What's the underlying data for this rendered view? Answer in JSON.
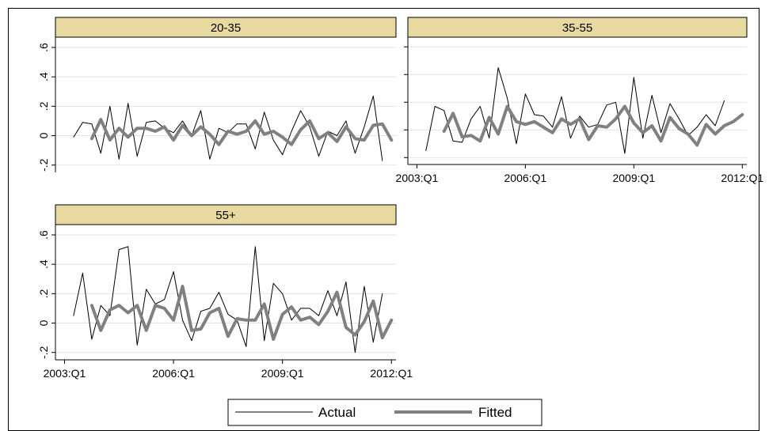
{
  "chart_data": {
    "type": "line",
    "layout": "small-multiples",
    "x_ticks": [
      "2003:Q1",
      "2006:Q1",
      "2009:Q1",
      "2012:Q1"
    ],
    "x_tick_values": [
      0,
      12,
      24,
      36
    ],
    "y_ticks": [
      "-.2",
      "0",
      ".2",
      ".4",
      ".6"
    ],
    "y_tick_values": [
      -0.2,
      0,
      0.2,
      0.4,
      0.6
    ],
    "ylim": [
      -0.25,
      0.67
    ],
    "grid": true,
    "legend": {
      "position": "bottom",
      "entries": [
        "Actual",
        "Fitted"
      ]
    },
    "colors": {
      "strip": "#e8d9a0",
      "actual": "#000000",
      "fitted": "#808080"
    },
    "panels": [
      {
        "title": "20-35",
        "x_start": 1,
        "series": [
          {
            "name": "Actual",
            "values": [
              -0.01,
              0.09,
              0.08,
              -0.12,
              0.2,
              -0.16,
              0.22,
              -0.14,
              0.09,
              0.1,
              0.05,
              0.02,
              0.1,
              0.0,
              0.17,
              -0.16,
              0.05,
              0.02,
              0.08,
              0.08,
              -0.09,
              0.16,
              -0.03,
              -0.13,
              0.03,
              0.17,
              0.06,
              -0.14,
              0.03,
              0.0,
              0.1,
              -0.12,
              0.06,
              0.27,
              -0.17
            ]
          },
          {
            "name": "Fitted",
            "values": [
              null,
              null,
              -0.02,
              0.11,
              -0.03,
              0.05,
              -0.01,
              0.05,
              0.05,
              0.03,
              0.06,
              -0.03,
              0.07,
              0.0,
              0.06,
              0.01,
              -0.06,
              0.03,
              0.01,
              0.03,
              0.1,
              0.01,
              0.03,
              -0.01,
              -0.06,
              0.04,
              0.1,
              -0.02,
              0.02,
              -0.04,
              0.06,
              -0.02,
              -0.03,
              0.07,
              0.08,
              -0.03
            ]
          }
        ]
      },
      {
        "title": "35-55",
        "x_start": 1,
        "series": [
          {
            "name": "Actual",
            "values": [
              -0.15,
              0.17,
              0.14,
              -0.08,
              -0.09,
              0.08,
              0.17,
              -0.06,
              0.45,
              0.23,
              -0.1,
              0.26,
              0.11,
              0.1,
              0.02,
              0.24,
              -0.06,
              0.1,
              0.02,
              0.04,
              0.18,
              0.2,
              -0.17,
              0.38,
              -0.06,
              0.25,
              -0.02,
              0.19,
              0.08,
              -0.04,
              0.02,
              0.11,
              0.03,
              0.21
            ]
          },
          {
            "name": "Fitted",
            "values": [
              null,
              null,
              -0.01,
              0.12,
              -0.05,
              -0.04,
              -0.08,
              0.09,
              -0.03,
              0.17,
              0.06,
              0.04,
              0.06,
              0.02,
              -0.02,
              0.08,
              0.04,
              0.08,
              -0.07,
              0.03,
              0.02,
              0.08,
              0.17,
              0.05,
              -0.02,
              0.03,
              -0.08,
              0.09,
              0.01,
              -0.03,
              -0.11,
              0.04,
              -0.03,
              0.03,
              0.06,
              0.11
            ]
          }
        ]
      },
      {
        "title": "55+",
        "x_start": 1,
        "series": [
          {
            "name": "Actual",
            "values": [
              0.05,
              0.34,
              -0.11,
              0.12,
              0.05,
              0.5,
              0.52,
              -0.15,
              0.23,
              0.13,
              0.16,
              0.35,
              0.02,
              -0.12,
              0.08,
              0.1,
              0.21,
              0.06,
              0.02,
              -0.16,
              0.52,
              -0.12,
              0.27,
              0.2,
              0.02,
              0.1,
              0.1,
              0.05,
              0.22,
              0.05,
              0.28,
              -0.2,
              0.25,
              -0.13,
              0.2
            ]
          },
          {
            "name": "Fitted",
            "values": [
              null,
              null,
              0.12,
              -0.05,
              0.09,
              0.12,
              0.07,
              0.12,
              -0.05,
              0.12,
              0.1,
              0.02,
              0.25,
              -0.05,
              -0.04,
              0.07,
              0.1,
              -0.09,
              0.03,
              0.02,
              0.02,
              0.13,
              -0.11,
              0.06,
              0.11,
              0.02,
              0.04,
              -0.01,
              0.08,
              0.21,
              -0.03,
              -0.08,
              0.01,
              0.15,
              -0.1,
              0.02
            ]
          }
        ]
      }
    ]
  }
}
